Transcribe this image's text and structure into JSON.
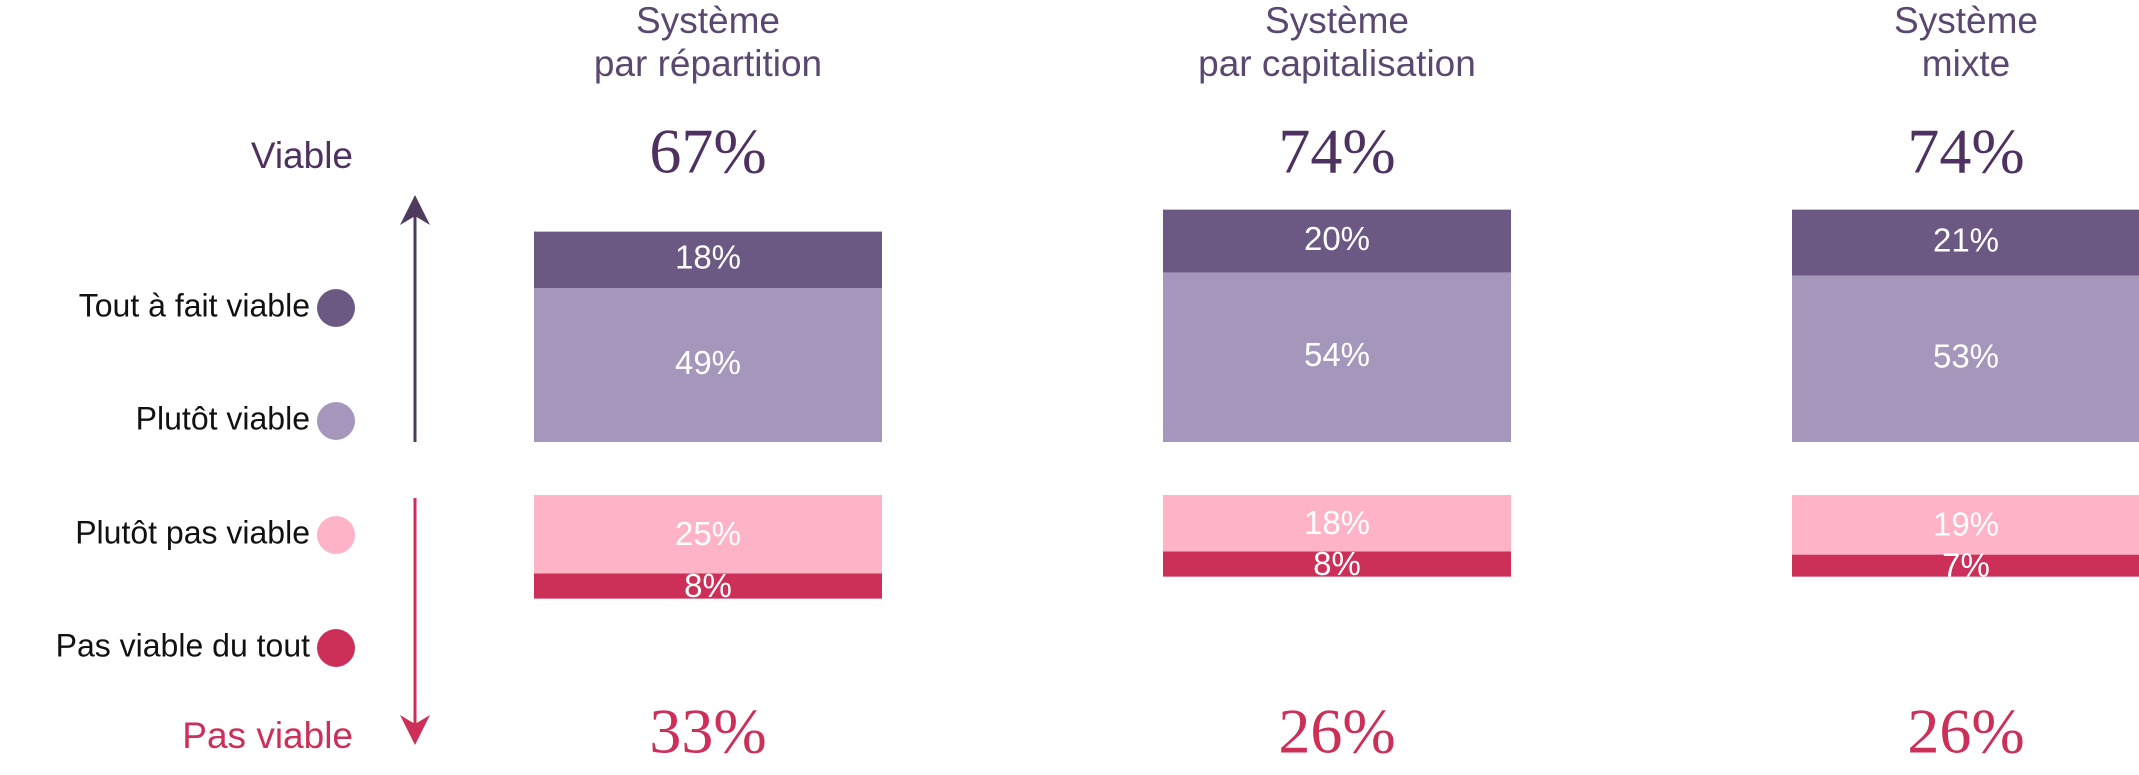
{
  "chart_data": {
    "type": "bar",
    "categories": [
      [
        "Système",
        "par répartition"
      ],
      [
        "Système",
        "par capitalisation"
      ],
      [
        "Système",
        "mixte"
      ]
    ],
    "series": [
      {
        "name": "Tout à fait viable",
        "color": "#6b5883",
        "values": [
          18,
          20,
          21
        ],
        "value_labels": [
          "18%",
          "20%",
          "21%"
        ]
      },
      {
        "name": "Plutôt viable",
        "color": "#a597bb",
        "values": [
          49,
          54,
          53
        ],
        "value_labels": [
          "49%",
          "54%",
          "53%"
        ]
      },
      {
        "name": "Plutôt pas viable",
        "color": "#ffb3c6",
        "values": [
          25,
          18,
          19
        ],
        "value_labels": [
          "25%",
          "18%",
          "19%"
        ]
      },
      {
        "name": "Pas viable du tout",
        "color": "#cc2f58",
        "values": [
          8,
          8,
          7
        ],
        "value_labels": [
          "8%",
          "8%",
          "7%"
        ]
      }
    ],
    "totals": [
      {
        "name": "Viable",
        "color": "#4e3160",
        "values": [
          67,
          74,
          74
        ],
        "value_labels": [
          "67%",
          "74%",
          "74%"
        ]
      },
      {
        "name": "Pas viable",
        "color": "#cc2f58",
        "values": [
          33,
          26,
          26
        ],
        "value_labels": [
          "33%",
          "26%",
          "26%"
        ]
      }
    ]
  }
}
